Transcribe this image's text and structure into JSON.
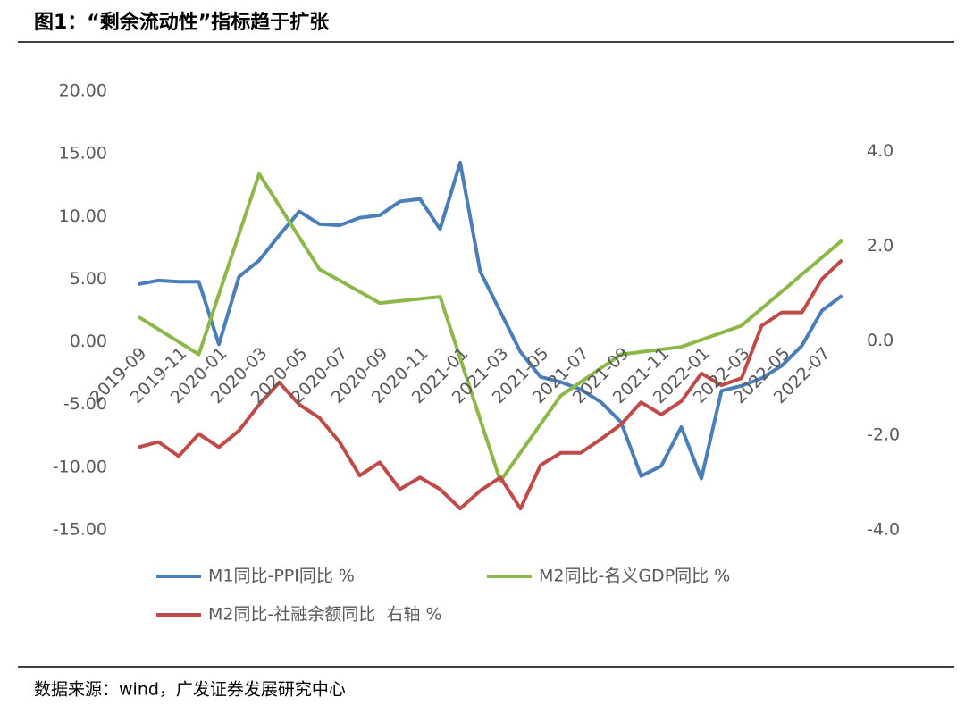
{
  "chart_data": {
    "type": "line",
    "title": "图1：“剩余流动性”指标趋于扩张",
    "source": "数据来源：wind，广发证券发展研究中心",
    "categories": [
      "2019-09",
      null,
      "2019-11",
      null,
      "2020-01",
      null,
      "2020-03",
      null,
      "2020-05",
      null,
      "2020-07",
      null,
      "2020-09",
      null,
      "2020-11",
      null,
      "2021-01",
      null,
      "2021-03",
      null,
      "2021-05",
      null,
      "2021-07",
      null,
      "2021-09",
      null,
      "2021-11",
      null,
      "2022-01",
      null,
      "2022-03",
      null,
      "2022-05",
      null,
      "2022-07",
      null
    ],
    "series": [
      {
        "name": "M1同比-PPI同比 %",
        "color": "#4a7ebb",
        "values": [
          4.6,
          4.9,
          4.8,
          4.8,
          -0.2,
          5.2,
          6.5,
          8.5,
          10.4,
          9.4,
          9.3,
          9.9,
          10.1,
          11.2,
          11.4,
          9.0,
          14.3,
          5.6,
          2.4,
          -0.8,
          -2.8,
          -3.2,
          -3.8,
          -4.8,
          -6.4,
          -10.7,
          -9.9,
          -6.8,
          -10.9,
          -3.9,
          -3.5,
          -2.9,
          -1.9,
          -0.3,
          2.5,
          3.7
        ]
      },
      {
        "name": "M2同比-名义GDP同比 %",
        "color": "#8cb84a",
        "x": [
          "2019-09",
          "2019-12",
          "2020-03",
          "2020-06",
          "2020-09",
          "2020-12",
          "2021-03",
          "2021-06",
          "2021-09",
          "2021-12",
          "2022-03",
          "2022-08"
        ],
        "values": [
          2.0,
          -1.0,
          13.4,
          5.8,
          3.1,
          3.6,
          -11.1,
          -4.3,
          -1.0,
          -0.4,
          1.3,
          8.1
        ]
      },
      {
        "name": "M2同比-社融余额同比  右轴 %",
        "color": "#be4b48",
        "axis": "y2",
        "values": [
          -2.25,
          -2.14,
          -2.44,
          -1.97,
          -2.25,
          -1.9,
          -1.35,
          -0.88,
          -1.35,
          -1.63,
          -2.14,
          -2.85,
          -2.57,
          -3.14,
          -2.89,
          -3.14,
          -3.55,
          -3.17,
          -2.89,
          -3.55,
          -2.63,
          -2.37,
          -2.37,
          -2.08,
          -1.77,
          -1.3,
          -1.56,
          -1.28,
          -0.69,
          -0.94,
          -0.79,
          0.32,
          0.6,
          0.6,
          1.31,
          1.71
        ]
      }
    ],
    "ylim": [
      -15,
      20
    ],
    "yticks": [
      {
        "value": 20,
        "label": "20.00"
      },
      {
        "value": 15,
        "label": "15.00"
      },
      {
        "value": 10,
        "label": "10.00"
      },
      {
        "value": 5,
        "label": "5.00"
      },
      {
        "value": 0,
        "label": "0.00"
      },
      {
        "value": -5,
        "label": "-5.00"
      },
      {
        "value": -10,
        "label": "-10.00"
      },
      {
        "value": -15,
        "label": "-15.00"
      }
    ],
    "y2lim": [
      -4,
      5.28
    ],
    "y2ticks": [
      {
        "value": 4,
        "label": "4.0"
      },
      {
        "value": 2,
        "label": "2.0"
      },
      {
        "value": 0,
        "label": "0.0"
      },
      {
        "value": -2,
        "label": "-2.0"
      },
      {
        "value": -4,
        "label": "-4.0"
      }
    ]
  }
}
